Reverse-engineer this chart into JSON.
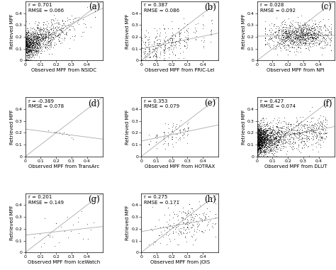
{
  "panels": [
    {
      "label": "(a)",
      "source": "NSIDC",
      "r": 0.701,
      "rmse": 0.066,
      "n_points": 1200,
      "seed": 1
    },
    {
      "label": "(b)",
      "source": "PRIC-Lei",
      "r": 0.387,
      "rmse": 0.086,
      "n_points": 350,
      "seed": 2
    },
    {
      "label": "(c)",
      "source": "NPI",
      "r": 0.028,
      "rmse": 0.092,
      "n_points": 1000,
      "seed": 3
    },
    {
      "label": "(d)",
      "source": "TransArc",
      "r": -0.389,
      "rmse": 0.078,
      "n_points": 10,
      "seed": 4
    },
    {
      "label": "(e)",
      "source": "HOTRAX",
      "r": 0.353,
      "rmse": 0.079,
      "n_points": 90,
      "seed": 5
    },
    {
      "label": "(f)",
      "source": "DLUT",
      "r": 0.427,
      "rmse": 0.074,
      "n_points": 2000,
      "seed": 6
    },
    {
      "label": "(g)",
      "source": "IceWatch",
      "r": 0.201,
      "rmse": 0.149,
      "n_points": 28,
      "seed": 7
    },
    {
      "label": "(h)",
      "source": "JOIS",
      "r": 0.275,
      "rmse": 0.171,
      "n_points": 220,
      "seed": 8
    }
  ],
  "xlim": [
    0,
    0.5
  ],
  "ylim": [
    0,
    0.5
  ],
  "xticks": [
    0,
    0.1,
    0.2,
    0.3,
    0.4
  ],
  "yticks": [
    0,
    0.1,
    0.2,
    0.3,
    0.4
  ],
  "xticklabels": [
    "0",
    "0.1",
    "0.2",
    "0.3",
    "0.4"
  ],
  "yticklabels": [
    "0",
    "0.1",
    "0.2",
    "0.3",
    "0.4"
  ],
  "xlabel_prefix": "Observed MPF from ",
  "ylabel": "Retrieved MPF",
  "diag_color": "#aaaaaa",
  "scatter_color": "black",
  "marker_size": 1.2,
  "text_color": "black",
  "bg_color": "white",
  "label_fontsize": 5.0,
  "tick_fontsize": 4.5,
  "stats_fontsize": 5.0,
  "panel_label_fontsize": 8.5,
  "line_width": 0.6
}
